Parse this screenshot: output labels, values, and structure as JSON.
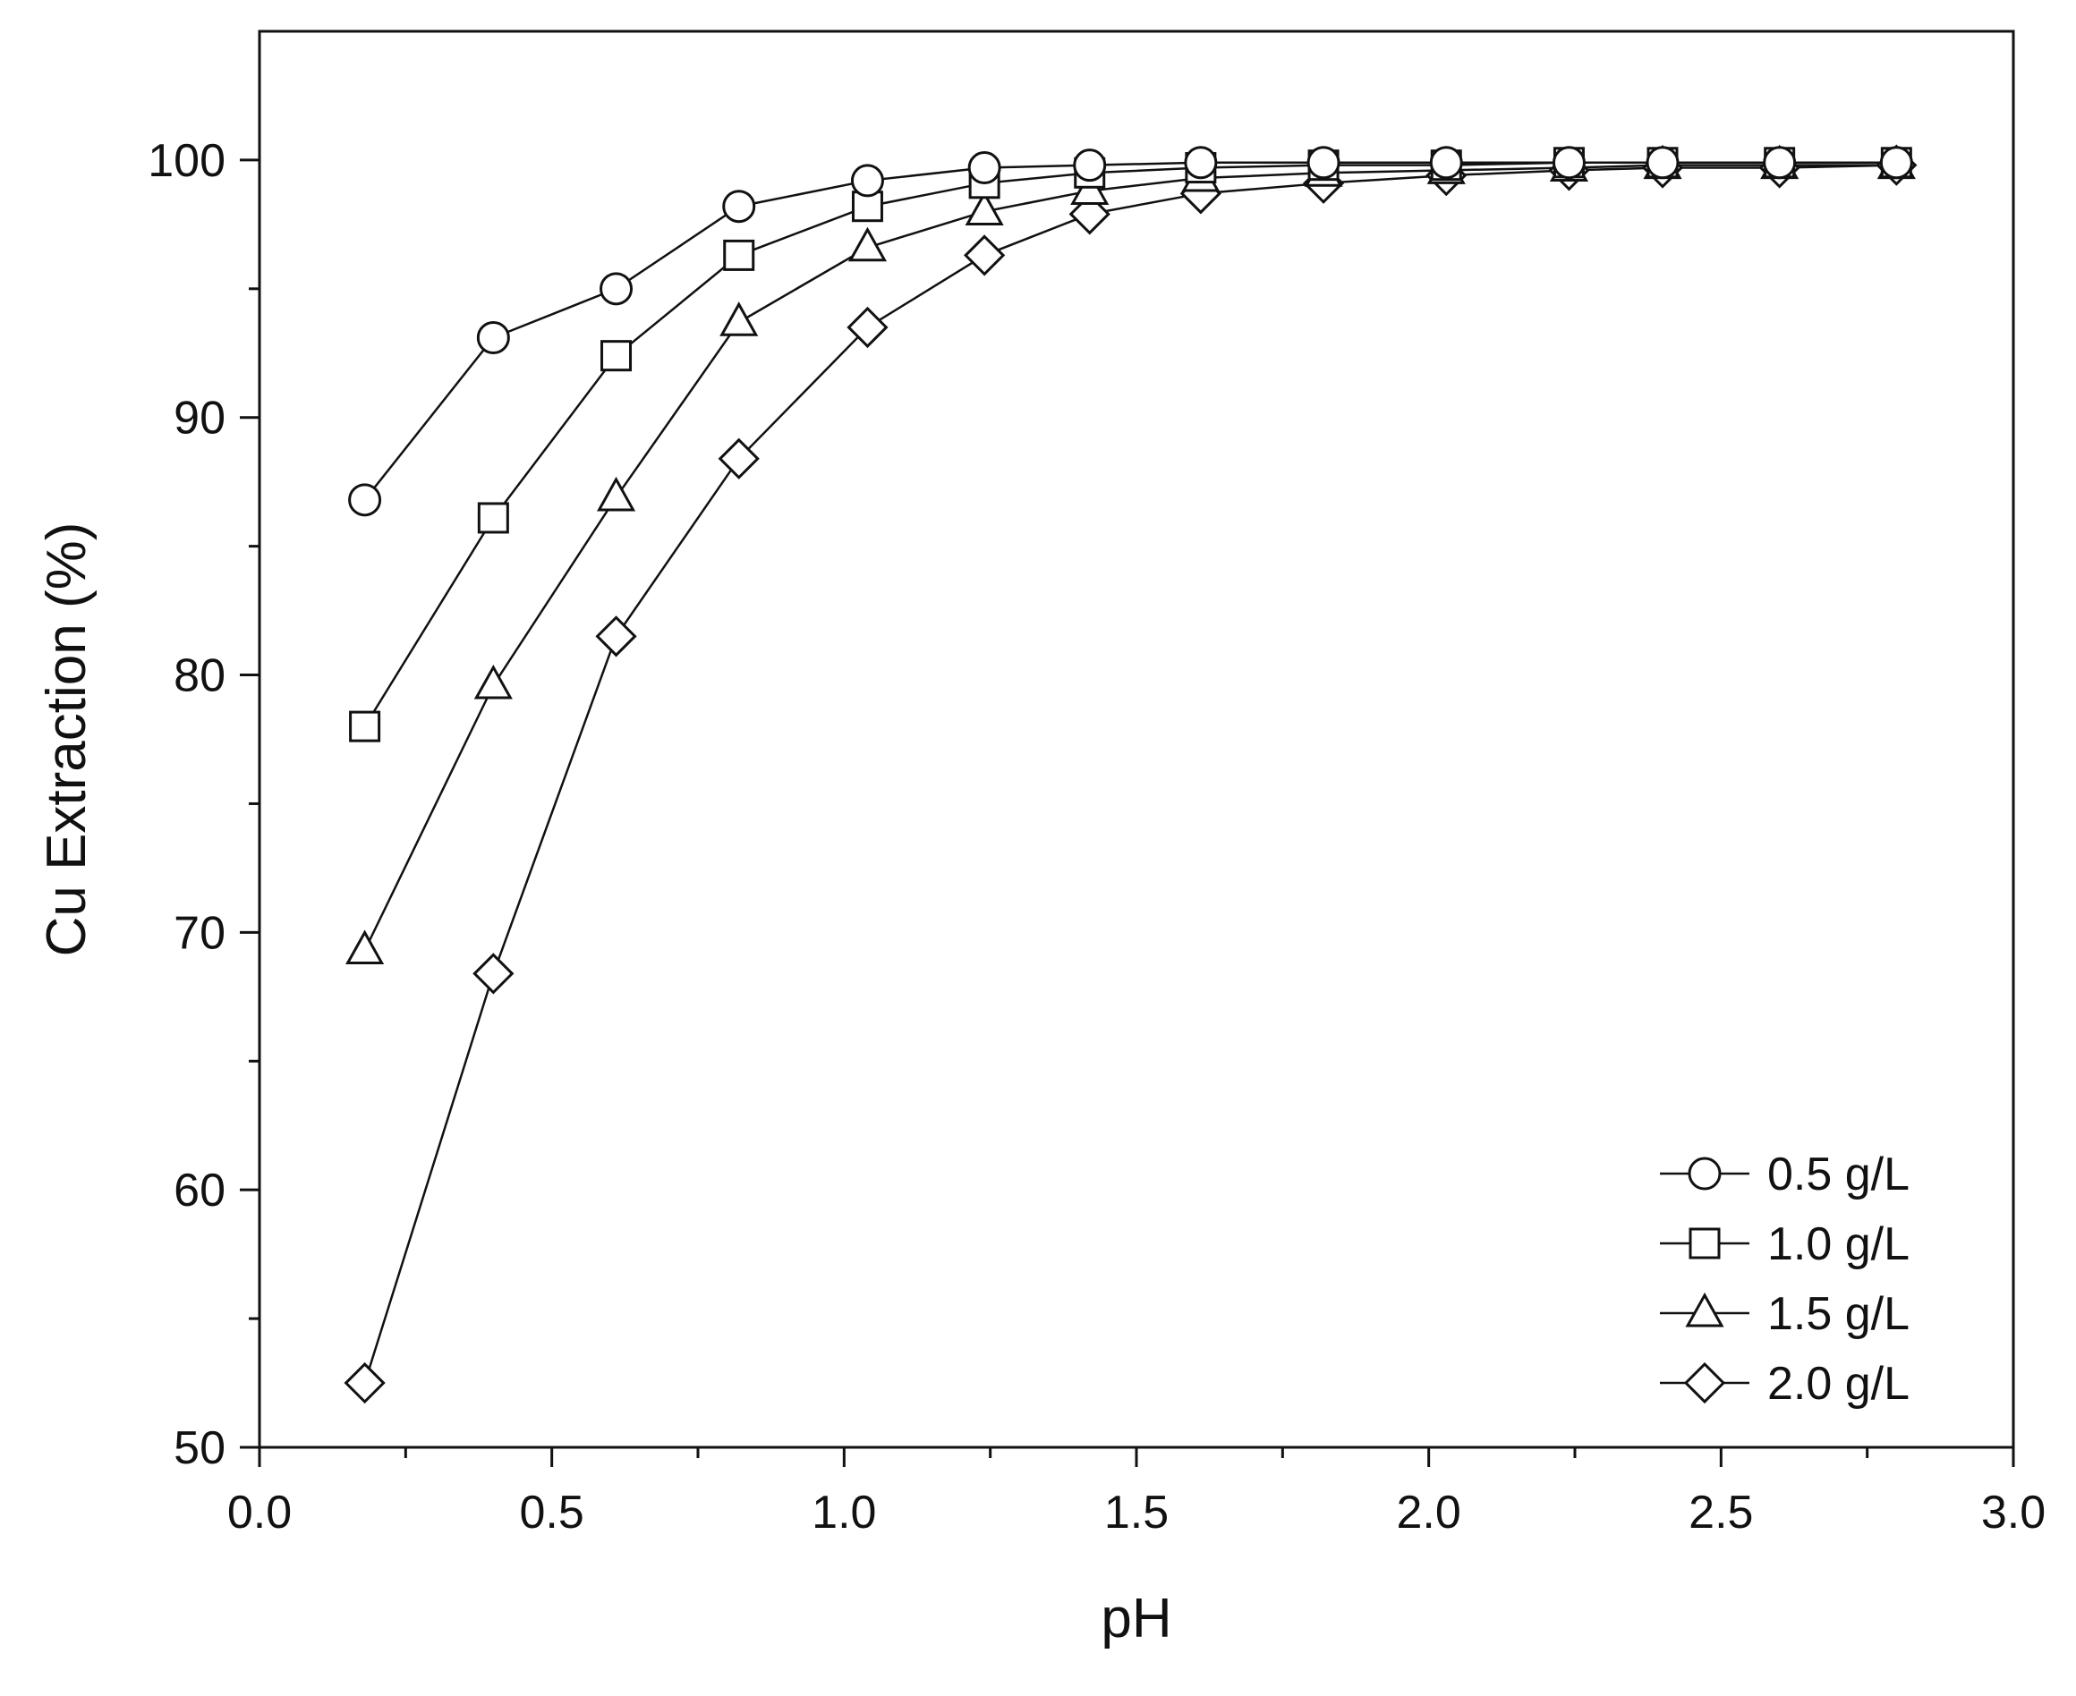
{
  "chart_data": {
    "type": "line",
    "title": "",
    "xlabel": "pH",
    "ylabel": "Cu Extraction (%)",
    "xlim": [
      0.0,
      3.0
    ],
    "ylim": [
      50,
      105
    ],
    "x_ticks": [
      "0.0",
      "0.5",
      "1.0",
      "1.5",
      "2.0",
      "2.5",
      "3.0"
    ],
    "y_ticks": [
      "50",
      "60",
      "70",
      "80",
      "90",
      "100"
    ],
    "grid": false,
    "legend_position": "bottom-right",
    "series": [
      {
        "name": "0.5 g/L",
        "marker": "circle",
        "x": [
          0.18,
          0.4,
          0.61,
          0.82,
          1.04,
          1.24,
          1.42,
          1.61,
          1.82,
          2.03,
          2.24,
          2.4,
          2.6,
          2.8
        ],
        "y": [
          86.8,
          93.1,
          95.0,
          98.2,
          99.2,
          99.7,
          99.8,
          99.9,
          99.9,
          99.9,
          99.9,
          99.9,
          99.9,
          99.9
        ]
      },
      {
        "name": "1.0 g/L",
        "marker": "square",
        "x": [
          0.18,
          0.4,
          0.61,
          0.82,
          1.04,
          1.24,
          1.42,
          1.61,
          1.82,
          2.03,
          2.24,
          2.4,
          2.6,
          2.8
        ],
        "y": [
          78.0,
          86.1,
          92.4,
          96.3,
          98.2,
          99.1,
          99.5,
          99.7,
          99.8,
          99.8,
          99.9,
          99.9,
          99.9,
          99.9
        ]
      },
      {
        "name": "1.5 g/L",
        "marker": "triangle",
        "x": [
          0.18,
          0.4,
          0.61,
          0.82,
          1.04,
          1.24,
          1.42,
          1.61,
          1.82,
          2.03,
          2.24,
          2.4,
          2.6,
          2.8
        ],
        "y": [
          69.3,
          79.6,
          86.9,
          93.7,
          96.6,
          98.0,
          98.8,
          99.3,
          99.5,
          99.6,
          99.7,
          99.8,
          99.8,
          99.8
        ]
      },
      {
        "name": "2.0 g/L",
        "marker": "diamond",
        "x": [
          0.18,
          0.4,
          0.61,
          0.82,
          1.04,
          1.24,
          1.42,
          1.61,
          1.82,
          2.03,
          2.24,
          2.4,
          2.6,
          2.8
        ],
        "y": [
          52.5,
          68.4,
          81.5,
          88.4,
          93.5,
          96.3,
          97.9,
          98.7,
          99.1,
          99.4,
          99.6,
          99.7,
          99.7,
          99.8
        ]
      }
    ]
  }
}
